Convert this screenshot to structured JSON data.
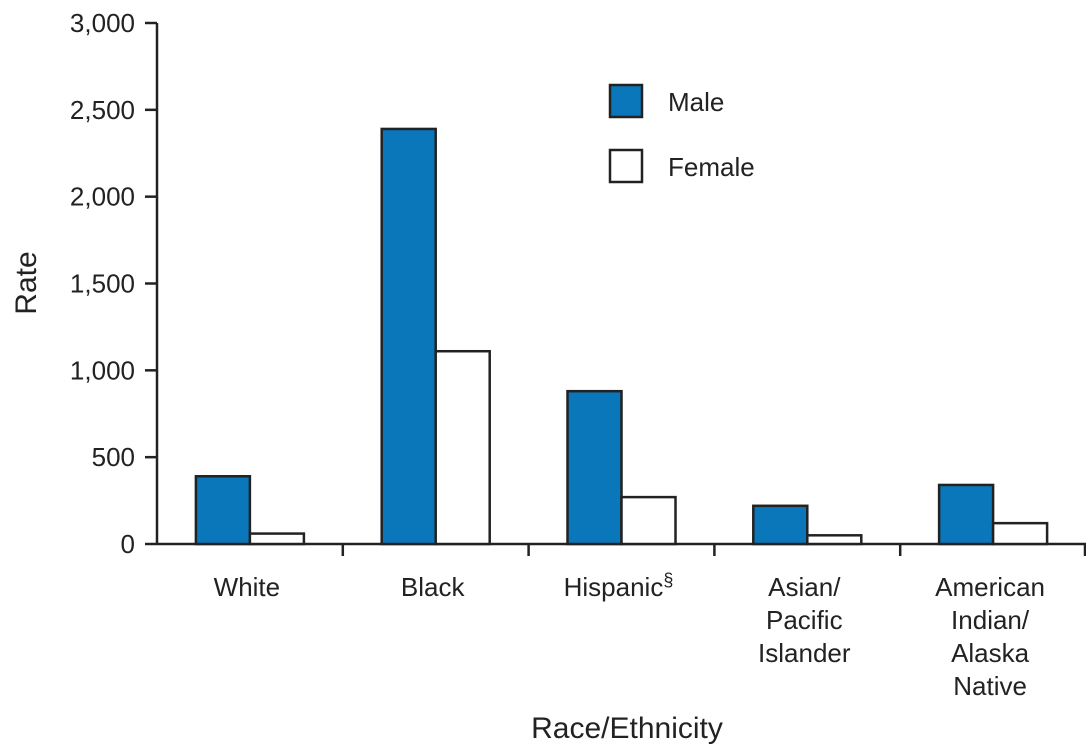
{
  "chart_data": {
    "type": "bar",
    "title": "",
    "xlabel": "Race/Ethnicity",
    "ylabel": "Rate",
    "ylim": [
      0,
      3000
    ],
    "yticks": [
      0,
      500,
      1000,
      1500,
      2000,
      2500,
      3000
    ],
    "ytick_labels": [
      "0",
      "500",
      "1,000",
      "1,500",
      "2,000",
      "2,500",
      "3,000"
    ],
    "categories": [
      {
        "lines": [
          "White"
        ],
        "sup": ""
      },
      {
        "lines": [
          "Black"
        ],
        "sup": ""
      },
      {
        "lines": [
          "Hispanic"
        ],
        "sup": "§"
      },
      {
        "lines": [
          "Asian/",
          "Pacific",
          "Islander"
        ],
        "sup": ""
      },
      {
        "lines": [
          "American",
          "Indian/",
          "Alaska",
          "Native"
        ],
        "sup": ""
      }
    ],
    "series": [
      {
        "name": "Male",
        "color": "#0a77bb",
        "values": [
          390,
          2390,
          880,
          220,
          340
        ]
      },
      {
        "name": "Female",
        "color": "#ffffff",
        "values": [
          60,
          1110,
          270,
          50,
          120
        ]
      }
    ],
    "grid": false,
    "legend_position": "top-right"
  }
}
